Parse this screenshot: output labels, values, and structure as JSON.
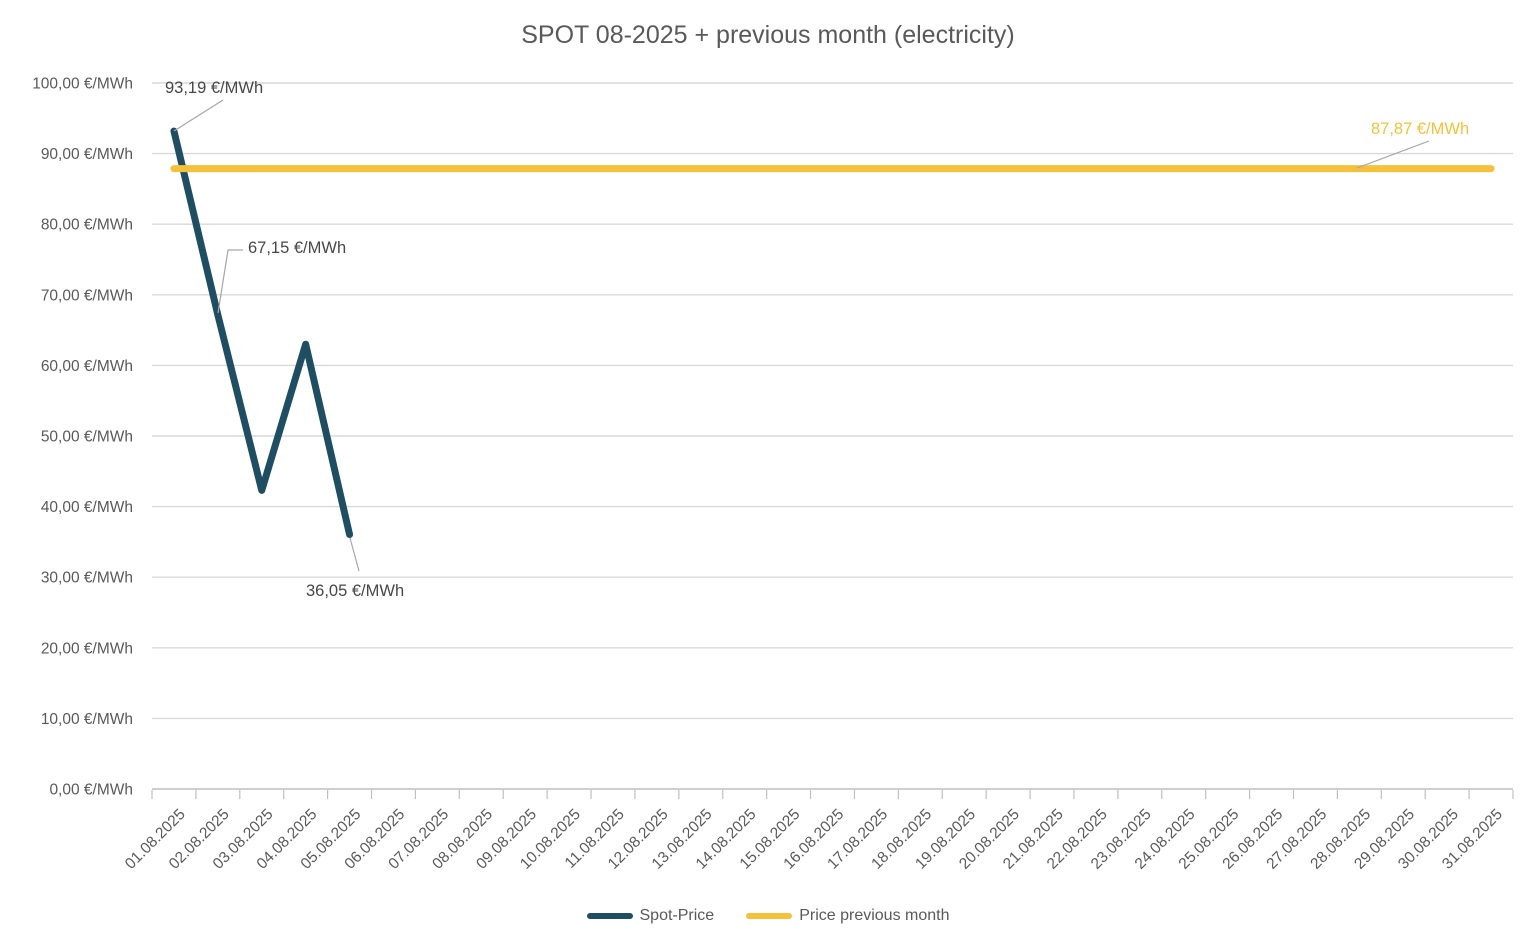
{
  "chart_data": {
    "type": "line",
    "title": "SPOT 08-2025 + previous month (electricity)",
    "xlabel": "",
    "ylabel": "",
    "grid": "horizontal",
    "legend_position": "bottom",
    "x_categories": [
      "01.08.2025",
      "02.08.2025",
      "03.08.2025",
      "04.08.2025",
      "05.08.2025",
      "06.08.2025",
      "07.08.2025",
      "08.08.2025",
      "09.08.2025",
      "10.08.2025",
      "11.08.2025",
      "12.08.2025",
      "13.08.2025",
      "14.08.2025",
      "15.08.2025",
      "16.08.2025",
      "17.08.2025",
      "18.08.2025",
      "19.08.2025",
      "20.08.2025",
      "21.08.2025",
      "22.08.2025",
      "23.08.2025",
      "24.08.2025",
      "25.08.2025",
      "26.08.2025",
      "27.08.2025",
      "28.08.2025",
      "29.08.2025",
      "30.08.2025",
      "31.08.2025"
    ],
    "y_axis": {
      "min": 0,
      "max": 100,
      "step": 10,
      "tick_labels": [
        "0,00 €/MWh",
        "10,00 €/MWh",
        "20,00 €/MWh",
        "30,00 €/MWh",
        "40,00 €/MWh",
        "50,00 €/MWh",
        "60,00 €/MWh",
        "70,00 €/MWh",
        "80,00 €/MWh",
        "90,00 €/MWh",
        "100,00 €/MWh"
      ]
    },
    "series": [
      {
        "id": "spot",
        "name": "Spot-Price",
        "color": "#1F4E63",
        "x": [
          "01.08.2025",
          "02.08.2025",
          "03.08.2025",
          "04.08.2025",
          "05.08.2025"
        ],
        "values": [
          93.19,
          67.15,
          42.3,
          63.0,
          36.05
        ]
      },
      {
        "id": "prev",
        "name": "Price previous month",
        "color": "#F5C13B",
        "constant_value": 87.87,
        "span": [
          "01.08.2025",
          "31.08.2025"
        ]
      }
    ],
    "annotations": [
      {
        "series": "spot",
        "x": "01.08.2025",
        "value": 93.19,
        "label": "93,19 €/MWh",
        "color": "#474747"
      },
      {
        "series": "spot",
        "x": "02.08.2025",
        "value": 67.15,
        "label": "67,15 €/MWh",
        "color": "#474747"
      },
      {
        "series": "spot",
        "x": "05.08.2025",
        "value": 36.05,
        "label": "36,05 €/MWh",
        "color": "#474747"
      },
      {
        "series": "prev",
        "value": 87.87,
        "label": "87,87 €/MWh",
        "color": "#F5C13B"
      }
    ],
    "colors": {
      "title_text": "#595959",
      "axis_text": "#595959",
      "gridline": "#D9D9D9",
      "axis_line": "#BFBFBF",
      "leader_line": "#A6A6A6",
      "background": "#FFFFFF"
    }
  }
}
